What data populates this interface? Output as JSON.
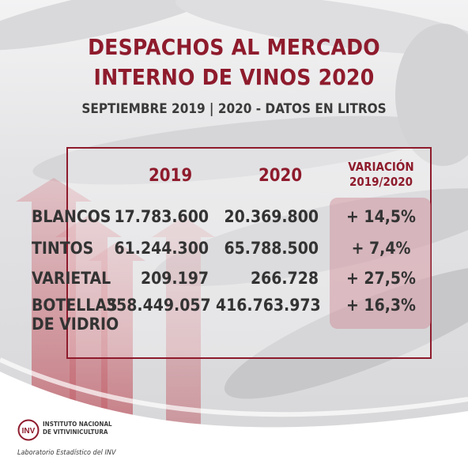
{
  "title_line1": "DESPACHOS AL MERCADO",
  "title_line2": "INTERNO DE VINOS 2020",
  "subtitle": "SEPTIEMBRE 2019 | 2020  -  DATOS EN LITROS",
  "headers": {
    "y2019": "2019",
    "y2020": "2020",
    "variation_l1": "VARIACIÓN",
    "variation_l2": "2019/2020"
  },
  "rows": [
    {
      "label": "BLANCOS",
      "v2019": "17.783.600",
      "v2020": "20.369.800",
      "var": "+ 14,5%"
    },
    {
      "label": "TINTOS",
      "v2019": "61.244.300",
      "v2020": "65.788.500",
      "var": "+ 7,4%"
    },
    {
      "label": "VARIETAL",
      "v2019": "209.197",
      "v2020": "266.728",
      "var": "+ 27,5%"
    },
    {
      "label_l1": "BOTELLAS",
      "label_l2": "DE VIDRIO",
      "v2019": "358.449.057",
      "v2020": "416.763.973",
      "var": "+ 16,3%"
    }
  ],
  "footer": {
    "logo_text": "INV",
    "institute_l1": "INSTITUTO NACIONAL",
    "institute_l2": "DE VITIVINICULTURA",
    "lab": "Laboratorio Estadístico del INV"
  },
  "colors": {
    "accent": "#8e1b2c",
    "text": "#333333"
  }
}
